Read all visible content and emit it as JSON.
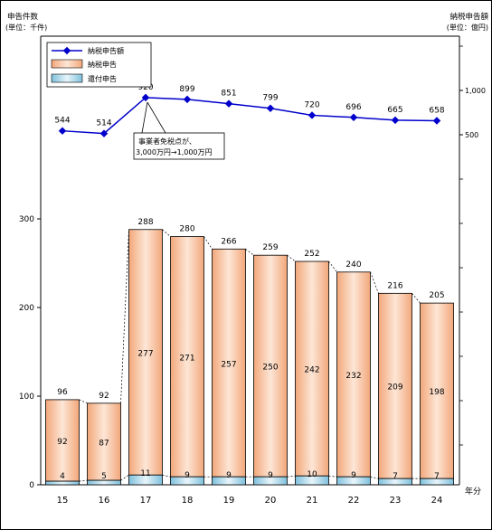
{
  "chart_data": {
    "type": "bar",
    "left_axis_title": "申告件数",
    "left_axis_unit": "(単位：千件)",
    "right_axis_title": "納税申告額",
    "right_axis_unit": "(単位：億円)",
    "x_axis_unit": "年分",
    "categories": [
      "15",
      "16",
      "17",
      "18",
      "19",
      "20",
      "21",
      "22",
      "23",
      "24"
    ],
    "totals": [
      96,
      92,
      288,
      280,
      266,
      259,
      252,
      240,
      216,
      205
    ],
    "left_ylim": [
      0,
      300
    ],
    "left_ticks": [
      "0",
      "100",
      "200",
      "300"
    ],
    "right_ticks": [
      {
        "value": 500,
        "label": "500"
      },
      {
        "value": 1000,
        "label": "1,000"
      }
    ],
    "series": [
      {
        "name": "納税申告",
        "type": "bar",
        "axis": "left",
        "color": "#f4b891",
        "values": [
          92,
          87,
          277,
          271,
          257,
          250,
          242,
          232,
          209,
          198
        ]
      },
      {
        "name": "還付申告",
        "type": "bar",
        "axis": "left",
        "color": "#9dd0e4",
        "values": [
          4,
          5,
          11,
          9,
          9,
          9,
          10,
          9,
          7,
          7
        ]
      },
      {
        "name": "納税申告額",
        "type": "line",
        "axis": "right",
        "color": "#0000cc",
        "values": [
          544,
          514,
          920,
          899,
          851,
          799,
          720,
          696,
          665,
          658
        ]
      }
    ],
    "annotation": {
      "line1": "事業者免税点が、",
      "line2": "3,000万円→1,000万円"
    },
    "legend_position": "top-left"
  }
}
